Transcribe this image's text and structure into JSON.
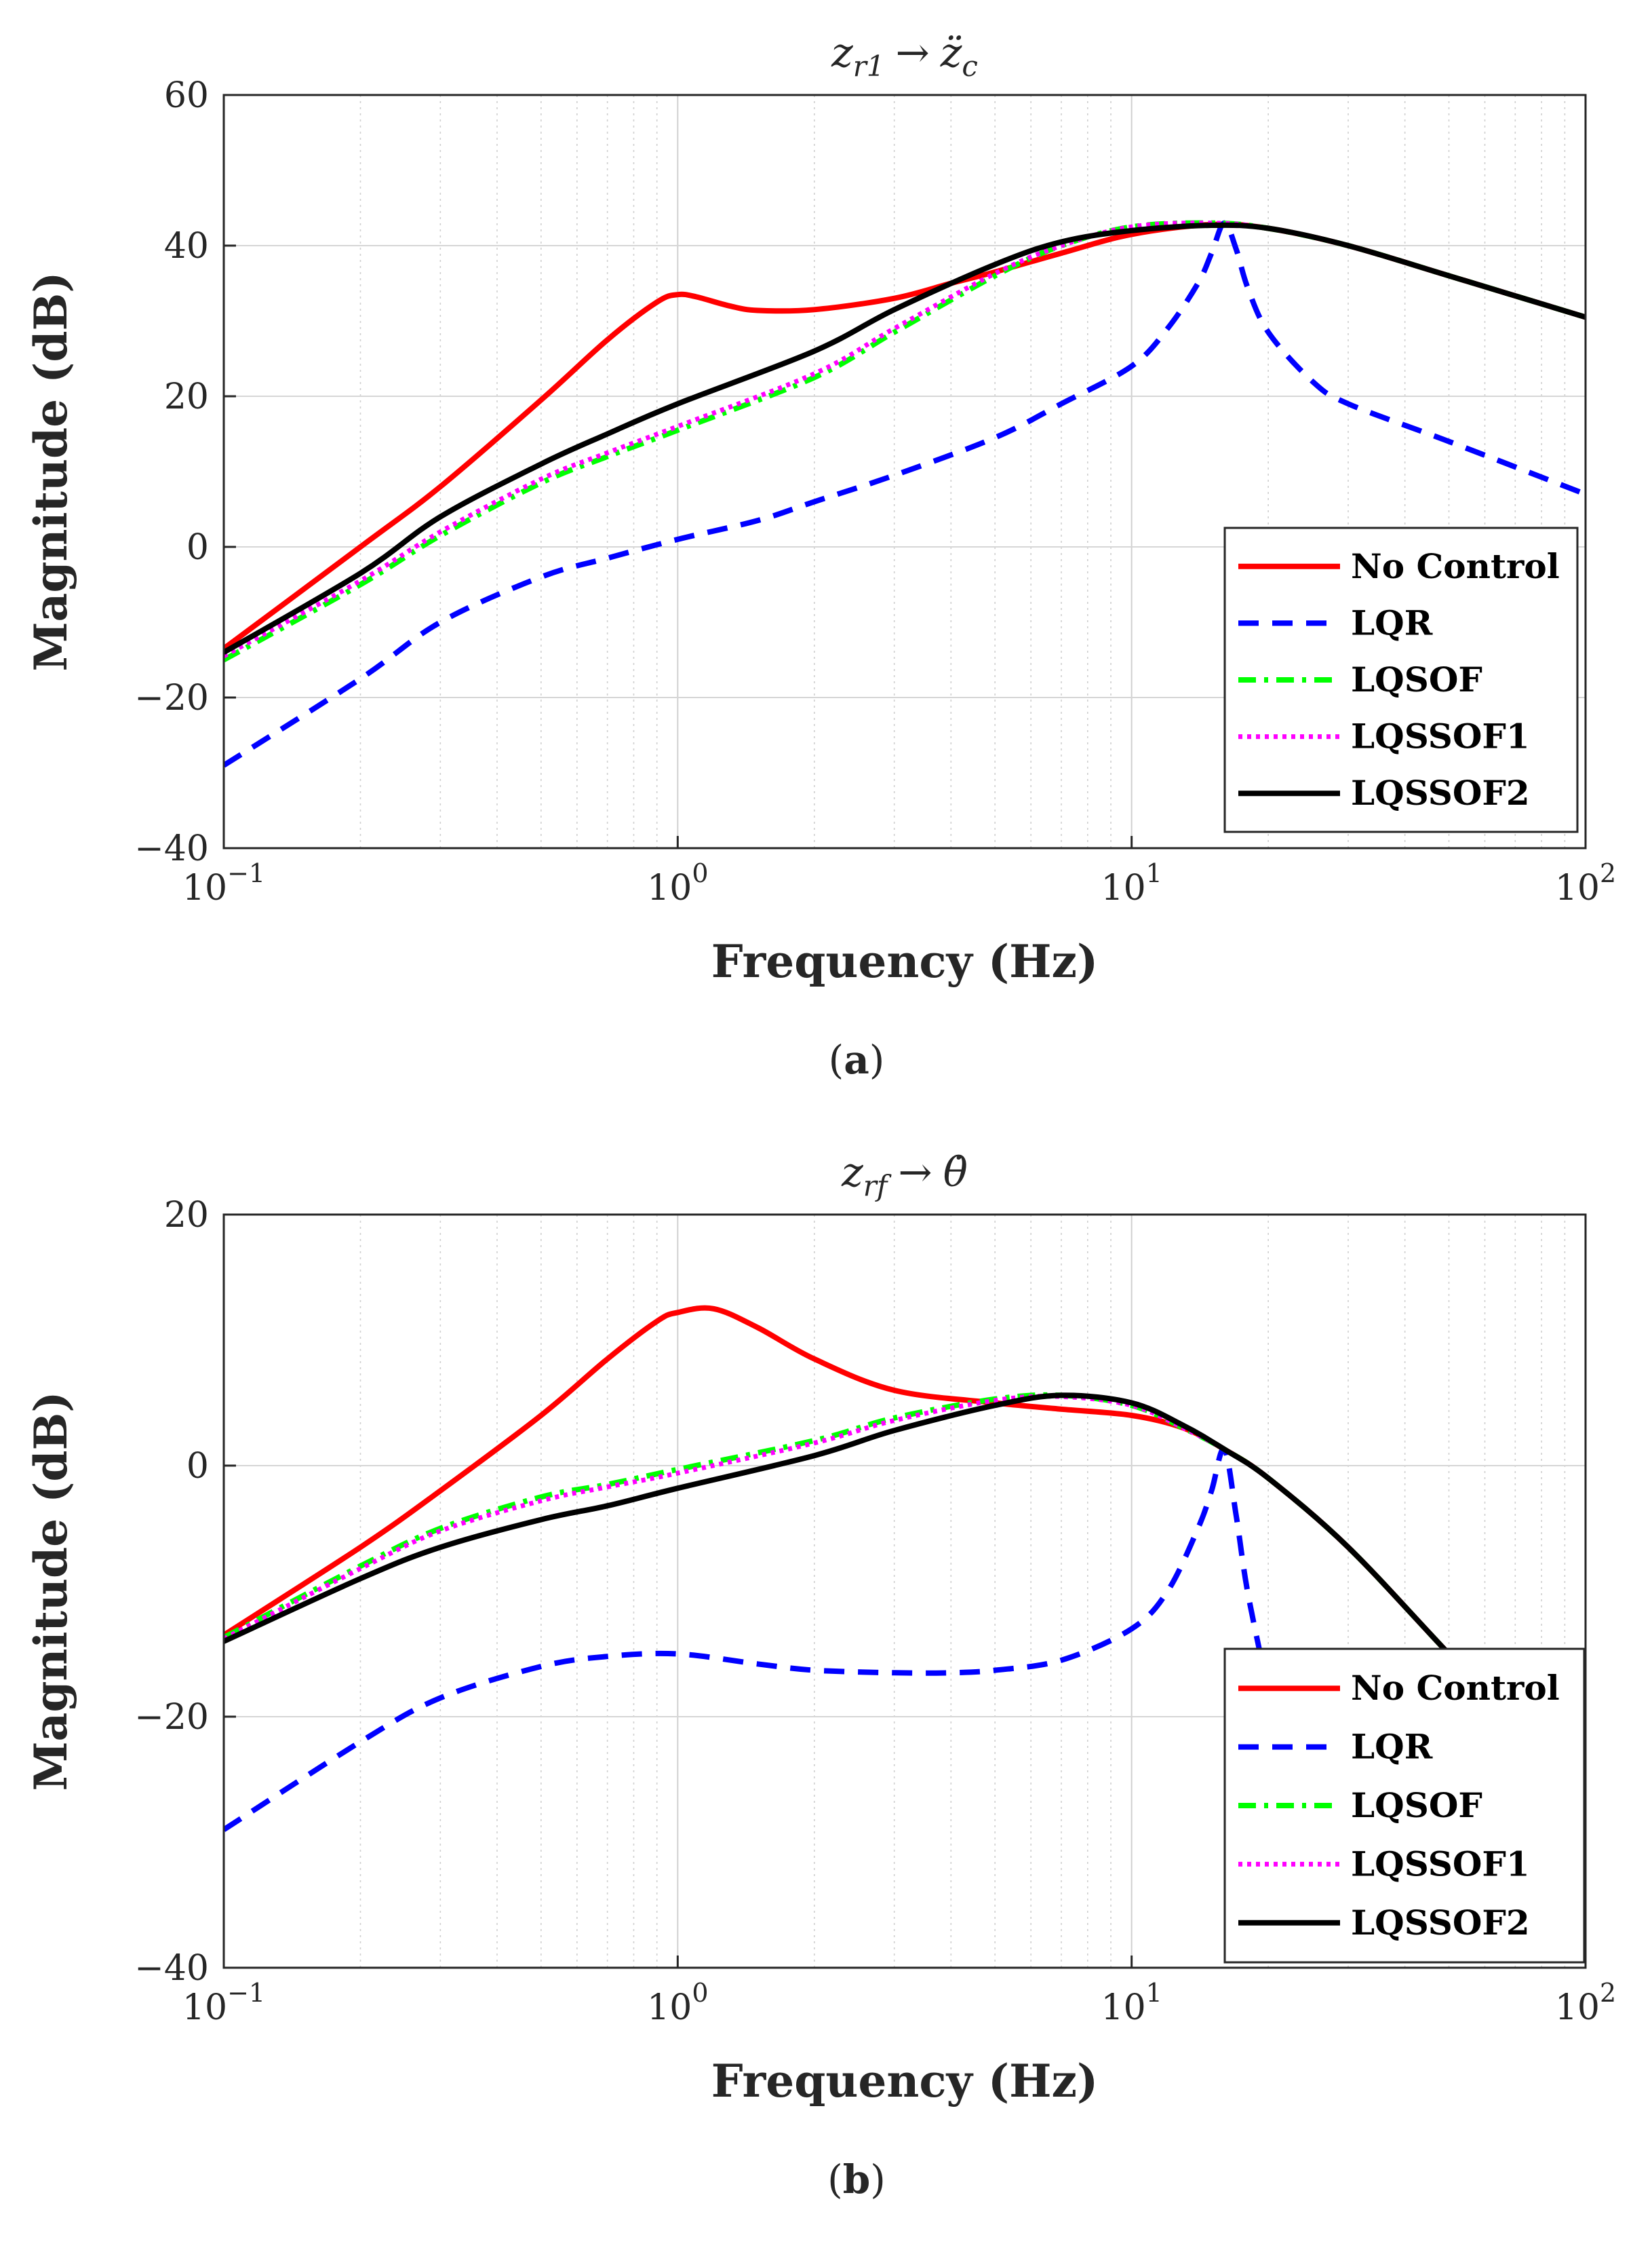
{
  "chart_data": [
    {
      "type": "line",
      "title": "z_r1 → z̈_c",
      "title_parts": {
        "var": "z",
        "sub": "r1",
        "arrow": "→",
        "target": "z̈",
        "target_sub": "c"
      },
      "xlabel": "Frequency (Hz)",
      "ylabel": "Magnitude (dB)",
      "caption": "(a)",
      "caption_parts": {
        "open": "(",
        "letter": "a",
        "close": ")"
      },
      "xscale": "log",
      "xlim": [
        0.1,
        100
      ],
      "ylim": [
        -40,
        60
      ],
      "xticks": [
        {
          "value": 0.1,
          "base": "10",
          "exp": "−1"
        },
        {
          "value": 1,
          "base": "10",
          "exp": "0"
        },
        {
          "value": 10,
          "base": "10",
          "exp": "1"
        },
        {
          "value": 100,
          "base": "10",
          "exp": "2"
        }
      ],
      "yticks": [
        {
          "value": 60,
          "label": "60"
        },
        {
          "value": 40,
          "label": "40"
        },
        {
          "value": 20,
          "label": "20"
        },
        {
          "value": 0,
          "label": "0"
        },
        {
          "value": -20,
          "label": "−20"
        },
        {
          "value": -40,
          "label": "−40"
        }
      ],
      "grid": true,
      "legend_position": "bottom-right",
      "series": [
        {
          "name": "No Control",
          "color": "#ff0000",
          "style": "solid",
          "x": [
            0.1,
            0.2,
            0.3,
            0.5,
            0.7,
            0.9,
            1.0,
            1.1,
            1.3,
            1.5,
            2,
            3,
            4,
            5,
            7,
            10,
            15,
            20,
            30,
            50,
            100
          ],
          "y": [
            -13.5,
            0,
            8,
            19.5,
            27.5,
            32.5,
            33.5,
            33.2,
            32,
            31.4,
            31.5,
            33,
            35,
            36.5,
            39,
            41.5,
            42.8,
            42.3,
            40,
            36,
            30.5
          ]
        },
        {
          "name": "LQR",
          "color": "#0000ff",
          "style": "dashed",
          "x": [
            0.1,
            0.2,
            0.3,
            0.5,
            0.7,
            1,
            1.5,
            2,
            3,
            5,
            7,
            10,
            12,
            14,
            15,
            16,
            17,
            18,
            20,
            25,
            30,
            50,
            100
          ],
          "y": [
            -29,
            -17.5,
            -10,
            -4,
            -1.5,
            1,
            3.5,
            6,
            9.5,
            14.5,
            19,
            24,
            29,
            35,
            39,
            43,
            39.5,
            34.5,
            28.5,
            22,
            19,
            14,
            7
          ]
        },
        {
          "name": "LQSOF",
          "color": "#00ff00",
          "style": "dashdot",
          "x": [
            0.1,
            0.2,
            0.3,
            0.5,
            0.7,
            1,
            2,
            3,
            5,
            7,
            10,
            15,
            20,
            30,
            50,
            100
          ],
          "y": [
            -15,
            -5,
            1.5,
            8.5,
            12,
            15.5,
            22.5,
            28.5,
            36,
            40,
            42.5,
            43,
            42.3,
            40,
            36,
            30.5
          ]
        },
        {
          "name": "LQSSOF1",
          "color": "#ff00ff",
          "style": "dotted",
          "x": [
            0.1,
            0.2,
            0.3,
            0.5,
            0.7,
            1,
            2,
            3,
            5,
            7,
            10,
            15,
            20,
            30,
            50,
            100
          ],
          "y": [
            -14.5,
            -4.5,
            2,
            9,
            12.5,
            16,
            23,
            29,
            36.3,
            40,
            42.5,
            43,
            42.3,
            40,
            36,
            30.5
          ]
        },
        {
          "name": "LQSSOF2",
          "color": "#000000",
          "style": "solid",
          "x": [
            0.1,
            0.2,
            0.3,
            0.5,
            0.7,
            1,
            2,
            3,
            5,
            7,
            10,
            15,
            20,
            30,
            50,
            100
          ],
          "y": [
            -14,
            -3.5,
            4,
            11,
            15,
            19,
            26,
            31.5,
            37.5,
            40.5,
            42,
            42.7,
            42.3,
            40,
            36,
            30.5
          ]
        }
      ]
    },
    {
      "type": "line",
      "title": "z_rf → θ̇",
      "title_parts": {
        "var": "z",
        "sub": "rf",
        "arrow": "→",
        "target": "θ̇",
        "target_sub": ""
      },
      "xlabel": "Frequency (Hz)",
      "ylabel": "Magnitude (dB)",
      "caption": "(b)",
      "caption_parts": {
        "open": "(",
        "letter": "b",
        "close": ")"
      },
      "xscale": "log",
      "xlim": [
        0.1,
        100
      ],
      "ylim": [
        -40,
        20
      ],
      "xticks": [
        {
          "value": 0.1,
          "base": "10",
          "exp": "−1"
        },
        {
          "value": 1,
          "base": "10",
          "exp": "0"
        },
        {
          "value": 10,
          "base": "10",
          "exp": "1"
        },
        {
          "value": 100,
          "base": "10",
          "exp": "2"
        }
      ],
      "yticks": [
        {
          "value": 20,
          "label": "20"
        },
        {
          "value": 0,
          "label": "0"
        },
        {
          "value": -20,
          "label": "−20"
        },
        {
          "value": -40,
          "label": "−40"
        }
      ],
      "grid": true,
      "legend_position": "bottom-right",
      "series": [
        {
          "name": "No Control",
          "color": "#ff0000",
          "style": "solid",
          "x": [
            0.1,
            0.2,
            0.3,
            0.5,
            0.7,
            0.9,
            1.0,
            1.2,
            1.5,
            2,
            3,
            5,
            7,
            10,
            13,
            16,
            20,
            30,
            50,
            100
          ],
          "y": [
            -13.5,
            -6.5,
            -2,
            4,
            8.5,
            11.5,
            12.2,
            12.5,
            11,
            8.5,
            6,
            5,
            4.5,
            4,
            3,
            1.3,
            -1,
            -6.5,
            -15,
            -26.5
          ]
        },
        {
          "name": "LQR",
          "color": "#0000ff",
          "style": "dashed",
          "x": [
            0.1,
            0.2,
            0.3,
            0.5,
            0.7,
            1,
            1.5,
            2,
            3,
            4,
            5,
            7,
            10,
            12,
            14,
            15,
            16,
            17,
            18,
            20
          ],
          "y": [
            -29,
            -22,
            -18.5,
            -16,
            -15.2,
            -15,
            -15.8,
            -16.3,
            -16.5,
            -16.5,
            -16.3,
            -15.5,
            -13,
            -10,
            -5,
            -2,
            1.3,
            -4,
            -10,
            -18
          ]
        },
        {
          "name": "LQSOF",
          "color": "#00ff00",
          "style": "dashdot",
          "x": [
            0.1,
            0.2,
            0.3,
            0.5,
            0.7,
            1,
            2,
            3,
            5,
            7,
            10,
            13,
            16,
            20,
            30,
            50,
            100
          ],
          "y": [
            -13.7,
            -8,
            -5,
            -2.5,
            -1.5,
            -0.3,
            2,
            3.8,
            5.3,
            5.6,
            4.8,
            3,
            1.3,
            -1,
            -6.5,
            -15,
            -26.5
          ]
        },
        {
          "name": "LQSSOF1",
          "color": "#ff00ff",
          "style": "dotted",
          "x": [
            0.1,
            0.2,
            0.3,
            0.5,
            0.7,
            1,
            2,
            3,
            5,
            7,
            10,
            13,
            16,
            20,
            30,
            50,
            100
          ],
          "y": [
            -13.8,
            -8.2,
            -5.2,
            -2.8,
            -1.7,
            -0.6,
            1.8,
            3.6,
            5.2,
            5.5,
            4.8,
            3,
            1.3,
            -1,
            -6.5,
            -15,
            -26.5
          ]
        },
        {
          "name": "LQSSOF2",
          "color": "#000000",
          "style": "solid",
          "x": [
            0.1,
            0.2,
            0.3,
            0.5,
            0.7,
            1,
            2,
            3,
            5,
            7,
            10,
            13,
            16,
            20,
            30,
            50,
            100
          ],
          "y": [
            -14,
            -9,
            -6.5,
            -4.3,
            -3.2,
            -1.8,
            0.8,
            2.8,
            4.8,
            5.6,
            5,
            3.2,
            1.3,
            -1,
            -6.5,
            -15,
            -26.5
          ]
        }
      ]
    }
  ]
}
